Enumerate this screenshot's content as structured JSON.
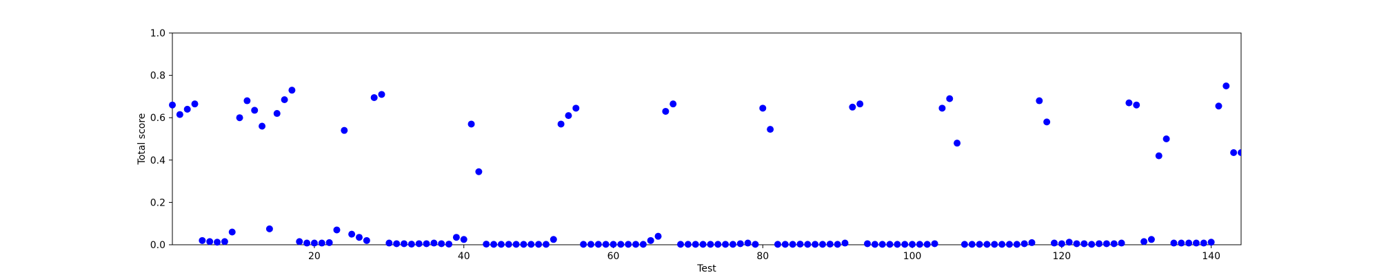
{
  "chart_data": {
    "type": "scatter",
    "xlabel": "Test",
    "ylabel": "Total score",
    "xlim": [
      1,
      144
    ],
    "ylim": [
      0,
      1.0
    ],
    "xticks": [
      20,
      40,
      60,
      80,
      100,
      120,
      140
    ],
    "yticks": [
      0.0,
      0.2,
      0.4,
      0.6,
      0.8,
      1.0
    ],
    "xtick_labels": [
      "20",
      "40",
      "60",
      "80",
      "100",
      "120",
      "140"
    ],
    "ytick_labels": [
      "0.0",
      "0.2",
      "0.4",
      "0.6",
      "0.8",
      "1.0"
    ],
    "grid": false,
    "marker_color": "#0000ff",
    "series": [
      {
        "x": [
          1,
          2,
          3,
          4,
          5,
          6,
          7,
          8,
          9,
          10,
          11,
          12,
          13,
          14,
          15,
          16,
          17,
          18,
          19,
          20,
          21,
          22,
          23,
          24,
          25,
          26,
          27,
          28,
          29,
          30,
          31,
          32,
          33,
          34,
          35,
          36,
          37,
          38,
          39,
          40,
          41,
          42,
          43,
          44,
          45,
          46,
          47,
          48,
          49,
          50,
          51,
          52,
          53,
          54,
          55,
          56,
          57,
          58,
          59,
          60,
          61,
          62,
          63,
          64,
          65,
          66,
          67,
          68,
          69,
          70,
          71,
          72,
          73,
          74,
          75,
          76,
          77,
          78,
          79,
          80,
          81,
          82,
          83,
          84,
          85,
          86,
          87,
          88,
          89,
          90,
          91,
          92,
          93,
          94,
          95,
          96,
          97,
          98,
          99,
          100,
          101,
          102,
          103,
          104,
          105,
          106,
          107,
          108,
          109,
          110,
          111,
          112,
          113,
          114,
          115,
          116,
          117,
          118,
          119,
          120,
          121,
          122,
          123,
          124,
          125,
          126,
          127,
          128,
          129,
          130,
          131,
          132,
          133,
          134,
          135,
          136,
          137,
          138,
          139,
          140,
          141,
          142,
          143,
          144
        ],
        "y": [
          0.66,
          0.615,
          0.64,
          0.665,
          0.02,
          0.015,
          0.012,
          0.015,
          0.06,
          0.6,
          0.68,
          0.635,
          0.56,
          0.075,
          0.62,
          0.685,
          0.73,
          0.015,
          0.008,
          0.008,
          0.008,
          0.01,
          0.07,
          0.54,
          0.05,
          0.035,
          0.02,
          0.695,
          0.71,
          0.008,
          0.005,
          0.005,
          0.003,
          0.005,
          0.005,
          0.008,
          0.005,
          0.003,
          0.035,
          0.025,
          0.57,
          0.345,
          0.003,
          0.002,
          0.002,
          0.002,
          0.002,
          0.002,
          0.002,
          0.002,
          0.002,
          0.025,
          0.57,
          0.61,
          0.645,
          0.002,
          0.002,
          0.002,
          0.002,
          0.002,
          0.002,
          0.002,
          0.002,
          0.002,
          0.02,
          0.04,
          0.63,
          0.665,
          0.002,
          0.002,
          0.002,
          0.002,
          0.002,
          0.002,
          0.002,
          0.002,
          0.005,
          0.008,
          0.002,
          0.645,
          0.545,
          0.002,
          0.002,
          0.002,
          0.003,
          0.002,
          0.002,
          0.002,
          0.003,
          0.002,
          0.008,
          0.65,
          0.665,
          0.005,
          0.002,
          0.002,
          0.002,
          0.002,
          0.002,
          0.002,
          0.002,
          0.002,
          0.005,
          0.645,
          0.69,
          0.48,
          0.002,
          0.002,
          0.002,
          0.002,
          0.002,
          0.002,
          0.002,
          0.002,
          0.005,
          0.01,
          0.68,
          0.58,
          0.008,
          0.005,
          0.012,
          0.005,
          0.005,
          0.002,
          0.005,
          0.005,
          0.005,
          0.008,
          0.67,
          0.66,
          0.015,
          0.025,
          0.42,
          0.5,
          0.008,
          0.008,
          0.008,
          0.008,
          0.008,
          0.012,
          0.655,
          0.75,
          0.435,
          0.435
        ]
      }
    ]
  }
}
